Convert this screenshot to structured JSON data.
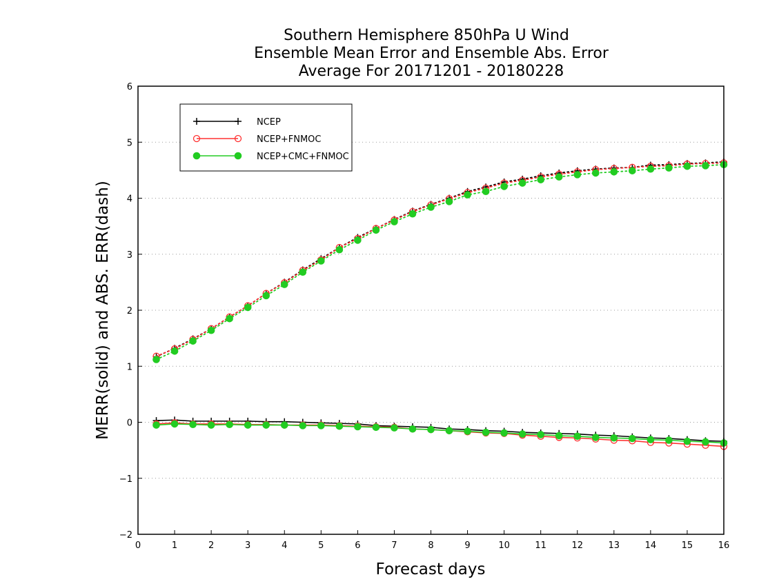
{
  "chart_data": {
    "type": "line",
    "title": [
      "Southern Hemisphere 850hPa U Wind",
      "Ensemble Mean Error and Ensemble Abs. Error",
      "Average For 20171201 - 20180228"
    ],
    "xlabel": "Forecast days",
    "ylabel": "MERR(solid) and ABS. ERR(dash)",
    "xlim": [
      0,
      16
    ],
    "ylim": [
      -2,
      6
    ],
    "xticks": [
      0,
      1,
      2,
      3,
      4,
      5,
      6,
      7,
      8,
      9,
      10,
      11,
      12,
      13,
      14,
      15,
      16
    ],
    "yticks": [
      -2,
      -1,
      0,
      1,
      2,
      3,
      4,
      5,
      6
    ],
    "ytick_labels": [
      "−2",
      "−1",
      "0",
      "1",
      "2",
      "3",
      "4",
      "5",
      "6"
    ],
    "grid": "horizontal dotted",
    "legend_position": "top-left",
    "x": [
      0.5,
      1,
      1.5,
      2,
      2.5,
      3,
      3.5,
      4,
      4.5,
      5,
      5.5,
      6,
      6.5,
      7,
      7.5,
      8,
      8.5,
      9,
      9.5,
      10,
      10.5,
      11,
      11.5,
      12,
      12.5,
      13,
      13.5,
      14,
      14.5,
      15,
      15.5,
      16
    ],
    "series": [
      {
        "name": "NCEP",
        "color": "#000000",
        "marker": "plus",
        "merr": [
          0.03,
          0.04,
          0.02,
          0.02,
          0.02,
          0.02,
          0.01,
          0.01,
          0.0,
          -0.01,
          -0.02,
          -0.03,
          -0.06,
          -0.07,
          -0.08,
          -0.09,
          -0.12,
          -0.13,
          -0.15,
          -0.16,
          -0.18,
          -0.19,
          -0.2,
          -0.21,
          -0.23,
          -0.24,
          -0.26,
          -0.28,
          -0.29,
          -0.31,
          -0.33,
          -0.34
        ],
        "abs_err": [
          1.17,
          1.32,
          1.49,
          1.67,
          1.88,
          2.08,
          2.3,
          2.5,
          2.72,
          2.92,
          3.12,
          3.3,
          3.46,
          3.62,
          3.77,
          3.89,
          4.0,
          4.12,
          4.2,
          4.29,
          4.34,
          4.4,
          4.45,
          4.49,
          4.52,
          4.54,
          4.55,
          4.59,
          4.6,
          4.62,
          4.63,
          4.65
        ]
      },
      {
        "name": "NCEP+FNMOC",
        "color": "#ff3030",
        "marker": "open-circle",
        "merr": [
          -0.03,
          -0.01,
          -0.03,
          -0.03,
          -0.03,
          -0.04,
          -0.04,
          -0.05,
          -0.05,
          -0.05,
          -0.06,
          -0.07,
          -0.08,
          -0.09,
          -0.12,
          -0.13,
          -0.15,
          -0.17,
          -0.19,
          -0.2,
          -0.23,
          -0.25,
          -0.27,
          -0.28,
          -0.3,
          -0.32,
          -0.33,
          -0.36,
          -0.37,
          -0.39,
          -0.41,
          -0.43
        ],
        "abs_err": [
          1.18,
          1.31,
          1.48,
          1.67,
          1.88,
          2.08,
          2.3,
          2.49,
          2.71,
          2.9,
          3.12,
          3.28,
          3.46,
          3.61,
          3.76,
          3.88,
          3.99,
          4.1,
          4.18,
          4.27,
          4.32,
          4.38,
          4.43,
          4.47,
          4.51,
          4.53,
          4.55,
          4.57,
          4.58,
          4.61,
          4.62,
          4.63
        ]
      },
      {
        "name": "NCEP+CMC+FNMOC",
        "color": "#22cc22",
        "marker": "filled-circle",
        "merr": [
          -0.05,
          -0.03,
          -0.04,
          -0.05,
          -0.04,
          -0.05,
          -0.05,
          -0.05,
          -0.06,
          -0.06,
          -0.07,
          -0.08,
          -0.09,
          -0.1,
          -0.12,
          -0.13,
          -0.15,
          -0.16,
          -0.18,
          -0.19,
          -0.21,
          -0.22,
          -0.24,
          -0.25,
          -0.27,
          -0.28,
          -0.29,
          -0.31,
          -0.32,
          -0.34,
          -0.35,
          -0.37
        ],
        "abs_err": [
          1.12,
          1.27,
          1.45,
          1.64,
          1.85,
          2.05,
          2.26,
          2.46,
          2.68,
          2.88,
          3.08,
          3.25,
          3.43,
          3.58,
          3.72,
          3.84,
          3.94,
          4.06,
          4.12,
          4.21,
          4.27,
          4.33,
          4.38,
          4.42,
          4.45,
          4.47,
          4.49,
          4.52,
          4.54,
          4.57,
          4.58,
          4.6
        ]
      }
    ]
  }
}
